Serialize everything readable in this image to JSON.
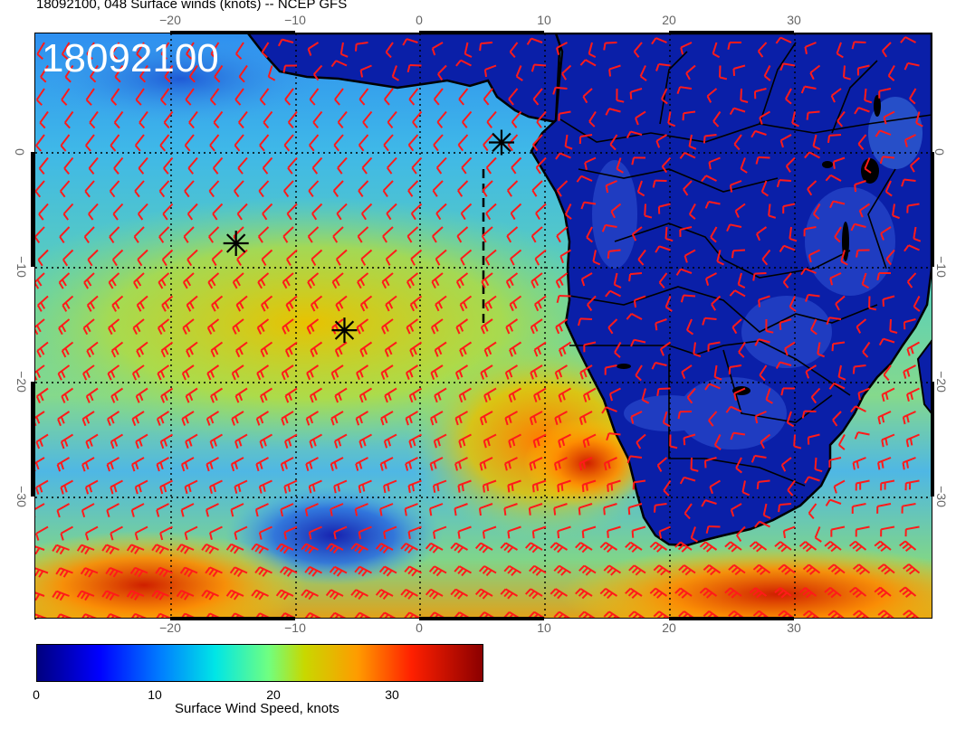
{
  "figure": {
    "title": "18092100, 048 Surface winds (knots) -- NCEP GFS",
    "date_stamp": "18092100"
  },
  "map": {
    "lon_range": [
      -30,
      41
    ],
    "lat_range": [
      -40,
      10
    ],
    "lon_ticks_top": [
      "−20",
      "−10",
      "0",
      "10",
      "20",
      "30"
    ],
    "lon_ticks_bottom": [
      "−20",
      "−10",
      "0",
      "10",
      "20",
      "30"
    ],
    "lat_ticks_left": [
      "0",
      "−10",
      "−20",
      "−30"
    ],
    "lat_ticks_right": [
      "0",
      "−10",
      "−20",
      "−30"
    ],
    "grid": "dotted",
    "barb_color": "#ff1a1a",
    "land_color": "#0a1fa8",
    "coastline_color": "#000000",
    "markers": [
      {
        "type": "asterisk",
        "lon": 6.8,
        "lat": 0.2
      },
      {
        "type": "asterisk",
        "lon": -14.5,
        "lat": -8.5
      },
      {
        "type": "asterisk",
        "lon": -5.8,
        "lat": -16.0
      }
    ]
  },
  "colorbar": {
    "label": "Surface Wind Speed, knots",
    "ticks": [
      "0",
      "10",
      "20",
      "30"
    ],
    "range": [
      0,
      36
    ]
  }
}
